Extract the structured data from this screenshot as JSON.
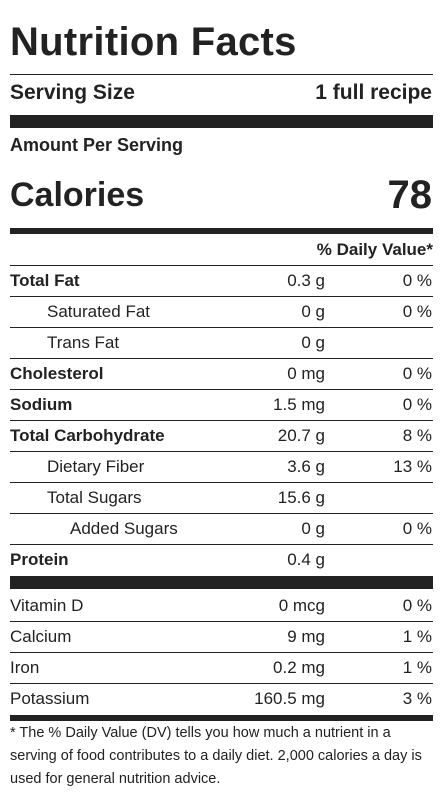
{
  "title": "Nutrition Facts",
  "serving": {
    "label": "Serving Size",
    "value": "1 full recipe"
  },
  "amount_per_serving": "Amount Per Serving",
  "calories": {
    "label": "Calories",
    "value": "78"
  },
  "daily_value_header": "% Daily Value*",
  "nutrients": [
    {
      "name": "Total Fat",
      "amount": "0.3 g",
      "dv": "0 %"
    },
    {
      "name": "Saturated Fat",
      "amount": "0 g",
      "dv": "0 %"
    },
    {
      "name": "Trans Fat",
      "amount": "0 g",
      "dv": ""
    },
    {
      "name": "Cholesterol",
      "amount": "0 mg",
      "dv": "0 %"
    },
    {
      "name": "Sodium",
      "amount": "1.5 mg",
      "dv": "0 %"
    },
    {
      "name": "Total Carbohydrate",
      "amount": "20.7 g",
      "dv": "8 %"
    },
    {
      "name": "Dietary Fiber",
      "amount": "3.6 g",
      "dv": "13 %"
    },
    {
      "name": "Total Sugars",
      "amount": "15.6 g",
      "dv": ""
    },
    {
      "name": "Added Sugars",
      "amount": "0 g",
      "dv": "0 %"
    },
    {
      "name": "Protein",
      "amount": "0.4 g",
      "dv": ""
    }
  ],
  "vitamins": [
    {
      "name": "Vitamin D",
      "amount": "0 mcg",
      "dv": "0 %"
    },
    {
      "name": "Calcium",
      "amount": "9 mg",
      "dv": "1 %"
    },
    {
      "name": "Iron",
      "amount": "0.2 mg",
      "dv": "1 %"
    },
    {
      "name": "Potassium",
      "amount": "160.5 mg",
      "dv": "3 %"
    }
  ],
  "footnote": "* The % Daily Value (DV) tells you how much a nutrient in a serving of food contributes to a daily diet. 2,000 calories a day is used for general nutrition advice."
}
